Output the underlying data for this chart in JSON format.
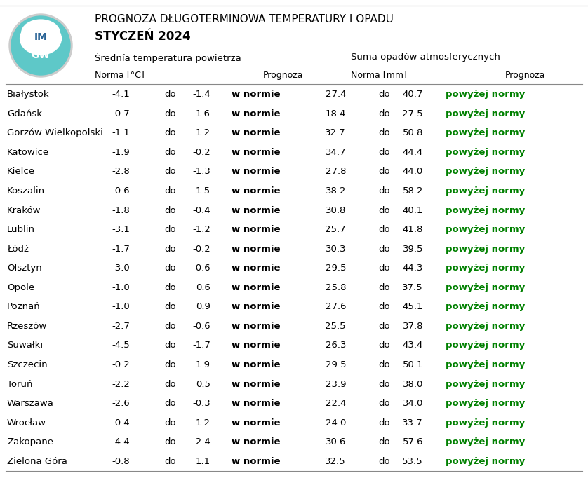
{
  "title_line1": "PROGNOZA DŁUGOTERMINOWA TEMPERATURY I OPADU",
  "title_line2": "STYCZEŃ 2024",
  "subtitle_temp": "Średnía temperatura powietrza",
  "subtitle_precip": "Suma opadów atmosferycznych",
  "col_norma_temp": "Norma [°C]",
  "col_prognoza": "Prognoza",
  "col_norma_precip": "Norma [mm]",
  "col_prognoza2": "Prognoza",
  "cities": [
    "Białystok",
    "Gdańsk",
    "Gorzów Wielkopolski",
    "Katowice",
    "Kielce",
    "Koszalin",
    "Kraków",
    "Lublin",
    "Łódź",
    "Olsztyn",
    "Opole",
    "Poznań",
    "Rzeszów",
    "Suwałki",
    "Szczecin",
    "Toruń",
    "Warszawa",
    "Wrocław",
    "Zakopane",
    "Zielona Góra"
  ],
  "temp_min": [
    -4.1,
    -0.7,
    -1.1,
    -1.9,
    -2.8,
    -0.6,
    -1.8,
    -3.1,
    -1.7,
    -3.0,
    -1.0,
    -1.0,
    -2.7,
    -4.5,
    -0.2,
    -2.2,
    -2.6,
    -0.4,
    -4.4,
    -0.8
  ],
  "temp_max": [
    -1.4,
    1.6,
    1.2,
    -0.2,
    -1.3,
    1.5,
    -0.4,
    -1.2,
    -0.2,
    -0.6,
    0.6,
    0.9,
    -0.6,
    -1.7,
    1.9,
    0.5,
    -0.3,
    1.2,
    -2.4,
    1.1
  ],
  "temp_prognoza": "w normie",
  "precip_min": [
    27.4,
    18.4,
    32.7,
    34.7,
    27.8,
    38.2,
    30.8,
    25.7,
    30.3,
    29.5,
    25.8,
    27.6,
    25.5,
    26.3,
    29.5,
    23.9,
    22.4,
    24.0,
    30.6,
    32.5
  ],
  "precip_max": [
    40.7,
    27.5,
    50.8,
    44.4,
    44.0,
    58.2,
    40.1,
    41.8,
    39.5,
    44.3,
    37.5,
    45.1,
    37.8,
    43.4,
    50.1,
    38.0,
    34.0,
    33.7,
    57.6,
    53.5
  ],
  "precip_prognoza": "powyżej normy",
  "bg_color": "#ffffff",
  "text_color": "#000000",
  "green_color": "#008000",
  "logo_teal": "#5ec8c8",
  "logo_dark": "#2a6496",
  "logo_gray": "#cccccc",
  "line_color": "#888888",
  "font_size_title1": 11,
  "font_size_title2": 12,
  "font_size_subtitle": 9.5,
  "font_size_header": 9,
  "font_size_data": 9.5
}
